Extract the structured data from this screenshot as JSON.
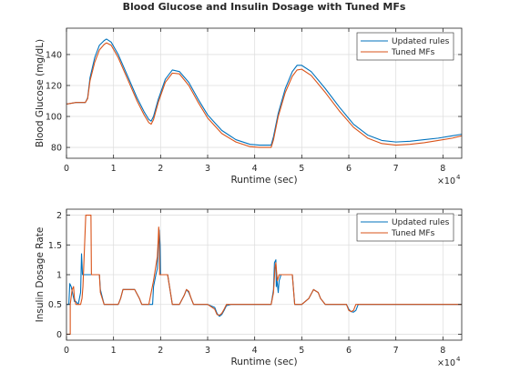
{
  "figure": {
    "title": "Blood Glucose and Insulin Dosage with Tuned MFs",
    "colors": {
      "updated": "#0072BD",
      "tuned": "#D95319",
      "grid": "#dfdfdf",
      "axis": "#262626"
    }
  },
  "chart_data": [
    {
      "type": "line",
      "title": "Blood Glucose and Insulin Dosage with Tuned MFs",
      "xlabel": "Runtime (sec)",
      "ylabel": "Blood Glucose (mg/dL)",
      "xlim": [
        0,
        84000
      ],
      "ylim": [
        73,
        157
      ],
      "xticks": [
        0,
        10000,
        20000,
        30000,
        40000,
        50000,
        60000,
        70000,
        80000
      ],
      "xtick_labels": [
        "0",
        "1",
        "2",
        "3",
        "4",
        "5",
        "6",
        "7",
        "8"
      ],
      "x_multiplier": "×10",
      "x_multiplier_exp": "4",
      "yticks": [
        80,
        100,
        120,
        140
      ],
      "yticklabels": [
        "80",
        "100",
        "120",
        "140"
      ],
      "grid": true,
      "legend": {
        "placement": "top-right",
        "entries": [
          "Updated rules",
          "Tuned MFs"
        ]
      },
      "series": [
        {
          "name": "Updated rules",
          "color": "#0072BD",
          "x": [
            0,
            2000,
            4000,
            4500,
            5000,
            6000,
            7000,
            8000,
            8500,
            9500,
            11000,
            13000,
            15000,
            16500,
            17500,
            18000,
            18500,
            19500,
            21000,
            22500,
            24000,
            26000,
            28000,
            30000,
            33000,
            36000,
            39000,
            41000,
            43500,
            44000,
            45000,
            46500,
            48000,
            49000,
            50000,
            52000,
            55000,
            58000,
            61000,
            64000,
            67000,
            70000,
            73000,
            76000,
            79000,
            82000,
            84000
          ],
          "y": [
            108,
            109,
            109,
            112,
            125,
            138,
            146,
            149,
            150,
            148,
            140,
            126,
            112,
            103,
            98,
            97,
            100,
            111,
            124,
            130,
            129,
            122,
            111,
            101,
            91,
            85,
            82,
            81.5,
            81.5,
            87,
            102,
            118,
            129,
            133,
            133,
            129,
            118,
            106,
            95,
            88,
            84.5,
            83.5,
            84,
            85,
            86,
            87.5,
            88.5
          ]
        },
        {
          "name": "Tuned MFs",
          "color": "#D95319",
          "x": [
            0,
            2000,
            4000,
            4500,
            5000,
            6000,
            7000,
            8000,
            8500,
            9500,
            11000,
            13000,
            15000,
            16500,
            17500,
            18000,
            18500,
            19500,
            21000,
            22500,
            24000,
            26000,
            28000,
            30000,
            33000,
            36000,
            39000,
            41000,
            43500,
            44000,
            45000,
            46500,
            48000,
            49000,
            50000,
            52000,
            55000,
            58000,
            61000,
            64000,
            67000,
            70000,
            73000,
            76000,
            79000,
            82000,
            84000
          ],
          "y": [
            108,
            109,
            109,
            111.5,
            123,
            135,
            143,
            146.5,
            147.5,
            146,
            138,
            124,
            110,
            101,
            96,
            95,
            98,
            109,
            122,
            128,
            127.5,
            120,
            109,
            99,
            89,
            83.5,
            80.5,
            80,
            80,
            85,
            100,
            115.5,
            126,
            130,
            130.5,
            126.5,
            115.5,
            103.5,
            93,
            86,
            82.5,
            81.5,
            82,
            83,
            84.5,
            86,
            87.5
          ]
        }
      ]
    },
    {
      "type": "line",
      "title": "",
      "xlabel": "Runtime (sec)",
      "ylabel": "Insulin Dosage Rate",
      "xlim": [
        0,
        84000
      ],
      "ylim": [
        -0.1,
        2.1
      ],
      "xticks": [
        0,
        10000,
        20000,
        30000,
        40000,
        50000,
        60000,
        70000,
        80000
      ],
      "xtick_labels": [
        "0",
        "1",
        "2",
        "3",
        "4",
        "5",
        "6",
        "7",
        "8"
      ],
      "x_multiplier": "×10",
      "x_multiplier_exp": "4",
      "yticks": [
        0,
        0.5,
        1,
        1.5,
        2
      ],
      "yticklabels": [
        "0",
        "0.5",
        "1",
        "1.5",
        "2"
      ],
      "grid": true,
      "legend": {
        "placement": "top-right",
        "entries": [
          "Updated rules",
          "Tuned MFs"
        ]
      },
      "series": [
        {
          "name": "Updated rules",
          "color": "#0072BD",
          "x": [
            0,
            500,
            700,
            1000,
            1400,
            1700,
            2000,
            2500,
            3000,
            3200,
            3400,
            3700,
            4000,
            4300,
            4500,
            4600,
            5500,
            5600,
            7000,
            7200,
            8000,
            8500,
            11000,
            11500,
            12000,
            14000,
            14500,
            15500,
            16000,
            17000,
            17500,
            18300,
            18500,
            19000,
            19300,
            19500,
            19700,
            19900,
            20000,
            21000,
            21500,
            22500,
            23000,
            24000,
            25000,
            25500,
            26000,
            26500,
            27000,
            28000,
            30000,
            31500,
            32000,
            32500,
            33000,
            33500,
            34000,
            35000,
            43500,
            44000,
            44200,
            44500,
            44600,
            44700,
            45000,
            45200,
            45600,
            46000,
            46500,
            48000,
            48500,
            50000,
            51500,
            52500,
            53500,
            54000,
            55000,
            58000,
            59500,
            60000,
            60500,
            61000,
            61500,
            62000,
            84000
          ],
          "y": [
            0.5,
            0.5,
            0.85,
            0.8,
            0.65,
            0.55,
            0.55,
            0.5,
            0.7,
            1.35,
            1.0,
            1.0,
            1.0,
            1.0,
            1.0,
            1.0,
            1.0,
            1.0,
            1.0,
            0.75,
            0.5,
            0.5,
            0.5,
            0.6,
            0.75,
            0.75,
            0.75,
            0.6,
            0.5,
            0.5,
            0.5,
            0.5,
            0.8,
            1.0,
            1.1,
            1.5,
            1.75,
            1.5,
            1.0,
            1.0,
            1.0,
            0.5,
            0.5,
            0.5,
            0.65,
            0.75,
            0.7,
            0.6,
            0.5,
            0.5,
            0.5,
            0.45,
            0.35,
            0.3,
            0.33,
            0.4,
            0.48,
            0.5,
            0.5,
            0.75,
            1.2,
            1.25,
            0.8,
            0.95,
            0.7,
            0.9,
            1.0,
            1.0,
            1.0,
            1.0,
            0.5,
            0.5,
            0.6,
            0.75,
            0.7,
            0.6,
            0.5,
            0.5,
            0.5,
            0.42,
            0.38,
            0.37,
            0.4,
            0.5,
            0.5
          ]
        },
        {
          "name": "Tuned MFs",
          "color": "#D95319",
          "x": [
            0,
            500,
            800,
            800,
            1200,
            1500,
            1700,
            2000,
            2500,
            3000,
            3300,
            3500,
            4100,
            4200,
            5200,
            5300,
            5600,
            5700,
            7000,
            7200,
            8000,
            8500,
            11000,
            11500,
            12000,
            14000,
            14500,
            15500,
            16000,
            17000,
            17500,
            18000,
            18500,
            19000,
            19300,
            19500,
            19600,
            19700,
            19800,
            20000,
            21000,
            21500,
            22000,
            22500,
            23000,
            24000,
            25000,
            25500,
            26000,
            26500,
            27000,
            28000,
            30000,
            31500,
            32000,
            32500,
            33000,
            33500,
            34000,
            35000,
            43500,
            44000,
            44300,
            44500,
            44800,
            45200,
            45800,
            46500,
            48000,
            48500,
            50000,
            51500,
            52500,
            53500,
            54000,
            55000,
            58000,
            59500,
            60000,
            60500,
            61000,
            61500,
            84000
          ],
          "y": [
            0,
            0,
            0,
            0.5,
            0.75,
            0.8,
            0.6,
            0.5,
            0.5,
            0.5,
            0.6,
            0.8,
            2.0,
            2.0,
            2.0,
            1.0,
            1.0,
            1.0,
            1.0,
            0.7,
            0.5,
            0.5,
            0.5,
            0.6,
            0.75,
            0.75,
            0.75,
            0.6,
            0.5,
            0.5,
            0.5,
            0.7,
            0.9,
            1.15,
            1.3,
            1.6,
            1.8,
            1.7,
            1.0,
            1.0,
            1.0,
            1.0,
            0.75,
            0.5,
            0.5,
            0.5,
            0.65,
            0.75,
            0.72,
            0.6,
            0.5,
            0.5,
            0.5,
            0.42,
            0.33,
            0.32,
            0.35,
            0.42,
            0.5,
            0.5,
            0.5,
            0.7,
            1.1,
            1.2,
            0.9,
            1.0,
            1.0,
            1.0,
            1.0,
            0.5,
            0.5,
            0.6,
            0.75,
            0.7,
            0.6,
            0.5,
            0.5,
            0.5,
            0.4,
            0.38,
            0.4,
            0.5,
            0.5
          ]
        }
      ]
    }
  ]
}
